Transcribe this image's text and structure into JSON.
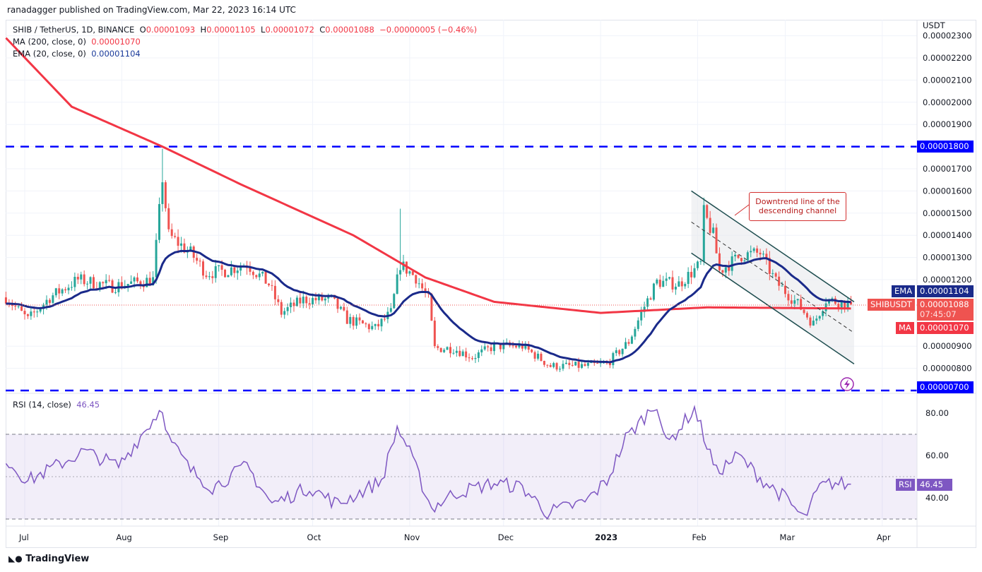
{
  "published": "ranadagger published on TradingView.com, Mar 22, 2023 16:14 UTC",
  "legend": {
    "symbol": "SHIB / TetherUS, 1D, BINANCE",
    "o_label": "O",
    "o": "0.00001093",
    "h_label": "H",
    "h": "0.00001105",
    "l_label": "L",
    "l": "0.00001072",
    "c_label": "C",
    "c": "0.00001088",
    "change": "−0.00000005 (−0.46%)",
    "ma_label": "MA (200, close, 0)",
    "ma_value": "0.00001070",
    "ema_label": "EMA (20, close, 0)",
    "ema_value": "0.00001104",
    "rsi_label": "RSI (14, close)",
    "rsi_value": "46.45"
  },
  "badges": {
    "ema": "EMA",
    "ema_value": "0.00001104",
    "symbol": "SHIBUSDT",
    "last": "0.00001088",
    "countdown": "07:45:07",
    "ma": "MA",
    "ma_value": "0.00001070",
    "level_high": "0.00001800",
    "level_low": "0.00000700",
    "rsi": "RSI",
    "rsi_value": "46.45"
  },
  "annotation": "Downtrend line of the descending channel",
  "logo": "TradingView",
  "colors": {
    "up": "#26a69a",
    "down": "#ef5350",
    "ma": "#f23645",
    "ema": "#1a2a8a",
    "level": "#0000ff",
    "rsi": "#7e57c2"
  },
  "chart_data": {
    "type": "candlestick",
    "x_unit": "days since 2022-07-01",
    "currency": "USDT",
    "price_scale": "1e-8 USDT",
    "y_ticks": [
      "0.00002300",
      "0.00002200",
      "0.00002100",
      "0.00002000",
      "0.00001900",
      "0.00001800",
      "0.00001700",
      "0.00001600",
      "0.00001500",
      "0.00001400",
      "0.00001300",
      "0.00001200",
      "0.00000900",
      "0.00000800"
    ],
    "y_tick_values": [
      2300,
      2200,
      2100,
      2000,
      1900,
      1800,
      1700,
      1600,
      1500,
      1400,
      1300,
      1200,
      900,
      800
    ],
    "x_ticks": [
      {
        "label": "Jul",
        "day": 0
      },
      {
        "label": "Aug",
        "day": 31
      },
      {
        "label": "Sep",
        "day": 62
      },
      {
        "label": "Oct",
        "day": 92
      },
      {
        "label": "Nov",
        "day": 123
      },
      {
        "label": "Dec",
        "day": 153
      },
      {
        "label": "2023",
        "day": 184
      },
      {
        "label": "Feb",
        "day": 215
      },
      {
        "label": "Mar",
        "day": 243
      },
      {
        "label": "Apr",
        "day": 274
      }
    ],
    "close_anchors": [
      [
        -6,
        1120
      ],
      [
        1,
        1020
      ],
      [
        8,
        1120
      ],
      [
        17,
        1200
      ],
      [
        28,
        1170
      ],
      [
        41,
        1200
      ],
      [
        44,
        1660
      ],
      [
        46,
        1400
      ],
      [
        53,
        1320
      ],
      [
        58,
        1230
      ],
      [
        64,
        1240
      ],
      [
        71,
        1270
      ],
      [
        78,
        1180
      ],
      [
        82,
        1050
      ],
      [
        89,
        1110
      ],
      [
        98,
        1110
      ],
      [
        103,
        1020
      ],
      [
        112,
        980
      ],
      [
        117,
        1050
      ],
      [
        120,
        1270
      ],
      [
        125,
        1210
      ],
      [
        129,
        1110
      ],
      [
        131,
        890
      ],
      [
        137,
        890
      ],
      [
        143,
        850
      ],
      [
        150,
        900
      ],
      [
        159,
        900
      ],
      [
        168,
        810
      ],
      [
        179,
        810
      ],
      [
        186,
        820
      ],
      [
        193,
        920
      ],
      [
        198,
        1080
      ],
      [
        202,
        1190
      ],
      [
        209,
        1180
      ],
      [
        216,
        1270
      ],
      [
        217,
        1500
      ],
      [
        220,
        1400
      ],
      [
        222,
        1240
      ],
      [
        229,
        1310
      ],
      [
        235,
        1320
      ],
      [
        240,
        1190
      ],
      [
        247,
        1090
      ],
      [
        252,
        1000
      ],
      [
        256,
        1110
      ],
      [
        264,
        1088
      ]
    ],
    "notable_highs": [
      [
        44,
        1790
      ],
      [
        120,
        1520
      ],
      [
        217,
        1570
      ]
    ],
    "ma200_anchors": [
      [
        -6,
        2290
      ],
      [
        15,
        1980
      ],
      [
        44,
        1800
      ],
      [
        69,
        1630
      ],
      [
        105,
        1400
      ],
      [
        128,
        1210
      ],
      [
        150,
        1100
      ],
      [
        184,
        1050
      ],
      [
        218,
        1075
      ],
      [
        264,
        1070
      ]
    ],
    "horizontal_levels": [
      1800,
      700
    ],
    "channel": {
      "start_day": 213,
      "end_day": 265,
      "upper": [
        1600,
        1100
      ],
      "lower": [
        1320,
        820
      ],
      "middle": [
        1460,
        960
      ]
    },
    "rsi": {
      "ticks": [
        80,
        60,
        40
      ],
      "tick_labels": [
        "80.00",
        "60.00",
        "40.00"
      ],
      "bands": [
        70,
        30
      ],
      "anchors": [
        [
          -6,
          58
        ],
        [
          1,
          48
        ],
        [
          19,
          62
        ],
        [
          30,
          55
        ],
        [
          44,
          83
        ],
        [
          46,
          68
        ],
        [
          53,
          53
        ],
        [
          60,
          45
        ],
        [
          71,
          55
        ],
        [
          79,
          37
        ],
        [
          91,
          45
        ],
        [
          100,
          37
        ],
        [
          114,
          48
        ],
        [
          119,
          73
        ],
        [
          122,
          65
        ],
        [
          130,
          35
        ],
        [
          137,
          42
        ],
        [
          150,
          47
        ],
        [
          159,
          45
        ],
        [
          167,
          33
        ],
        [
          179,
          38
        ],
        [
          186,
          48
        ],
        [
          192,
          68
        ],
        [
          202,
          85
        ],
        [
          205,
          65
        ],
        [
          214,
          82
        ],
        [
          221,
          52
        ],
        [
          228,
          60
        ],
        [
          236,
          48
        ],
        [
          243,
          40
        ],
        [
          249,
          30
        ],
        [
          254,
          45
        ],
        [
          258,
          47
        ],
        [
          263,
          46.45
        ]
      ]
    }
  }
}
